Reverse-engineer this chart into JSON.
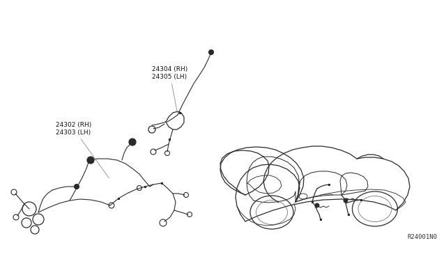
{
  "bg_color": "#ffffff",
  "label1_text": "24302 (RH)\n24303 (LH)",
  "label2_text": "24304 (RH)\n24305 (LH)",
  "ref_code": "R24001N0",
  "font_size_labels": 6.5,
  "font_size_ref": 6.5,
  "line_color": "#2a2a2a",
  "line_color_light": "#666666"
}
